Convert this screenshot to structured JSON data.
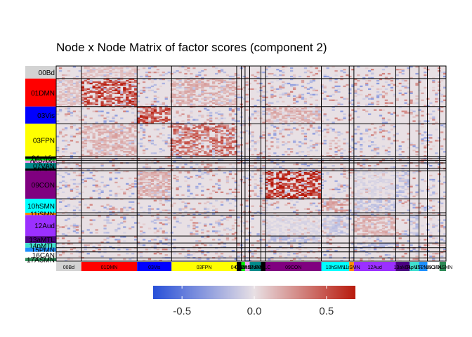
{
  "chart_data": {
    "type": "heatmap",
    "title": "Node x Node Matrix of factor scores (component 2)",
    "xlabel": "",
    "ylabel": "",
    "value_range": [
      -0.7,
      0.7
    ],
    "colorbar": {
      "ticks": [
        -0.5,
        0.0,
        0.5
      ],
      "tick_labels": [
        "-0.5",
        "0.0",
        "0.5"
      ],
      "colors": [
        "#2850d8",
        "#e8e0e4",
        "#b81a0c"
      ]
    },
    "networks": [
      {
        "label": "00Bd",
        "color": "#d3d3d3",
        "size": 27
      },
      {
        "label": "01DMN",
        "color": "#ff0000",
        "size": 60
      },
      {
        "label": "03Vis",
        "color": "#0000ff",
        "size": 37
      },
      {
        "label": "03FPN",
        "color": "#ffff00",
        "size": 70
      },
      {
        "label": "04mVis",
        "color": "#000000",
        "size": 5
      },
      {
        "label": "05DAN",
        "color": "#00ee00",
        "size": 4
      },
      {
        "label": "06PrMd",
        "color": "#f0a0f0",
        "size": 5
      },
      {
        "label": "07VAN",
        "color": "#008b8b",
        "size": 12
      },
      {
        "label": "08SLC",
        "color": "#000000",
        "size": 5
      },
      {
        "label": "09CON",
        "color": "#800080",
        "size": 60
      },
      {
        "label": "10hSMN",
        "color": "#00ffff",
        "size": 30
      },
      {
        "label": "11iSMN",
        "color": "#ff8c00",
        "size": 5
      },
      {
        "label": "12Aud",
        "color": "#9b30ff",
        "size": 45
      },
      {
        "label": "13aMTL",
        "color": "#4b0082",
        "size": 15
      },
      {
        "label": "14pMTL",
        "color": "#40e0d0",
        "size": 10
      },
      {
        "label": "15PMN",
        "color": "#1e90ff",
        "size": 9
      },
      {
        "label": "16CAN",
        "color": "#ffffff",
        "size": 13
      },
      {
        "label": "17ASMN",
        "color": "#2e8b57",
        "size": 7
      }
    ],
    "bottom_labels": [
      "00Bd",
      "01DMN",
      "03Vis",
      "03FPN",
      "04mVis",
      "05DAN",
      "06PrMd",
      "07VAN",
      "08SLC",
      "09CON",
      "10hSMN",
      "11iSMN",
      "12Aud",
      "13aMTL",
      "14pMTL",
      "15PMN",
      "16CAN",
      "17ASMN"
    ],
    "block_means": [
      [
        "00Bd",
        "01DMN",
        0.1
      ],
      [
        "01DMN",
        "01DMN",
        0.45
      ],
      [
        "01DMN",
        "03FPN",
        0.15
      ],
      [
        "03Vis",
        "03Vis",
        0.45
      ],
      [
        "03Vis",
        "09CON",
        0.15
      ],
      [
        "03FPN",
        "03FPN",
        0.35
      ],
      [
        "09CON",
        "09CON",
        0.55
      ],
      [
        "09CON",
        "12Aud",
        0.15
      ],
      [
        "10hSMN",
        "10hSMN",
        0.2
      ],
      [
        "12Aud",
        "12Aud",
        0.15
      ],
      [
        "12Aud",
        "10hSMN",
        -0.12
      ],
      [
        "12Aud",
        "09CON",
        -0.05
      ],
      [
        "13aMTL",
        "09CON",
        -0.15
      ],
      [
        "14pMTL",
        "12Aud",
        -0.15
      ]
    ]
  }
}
